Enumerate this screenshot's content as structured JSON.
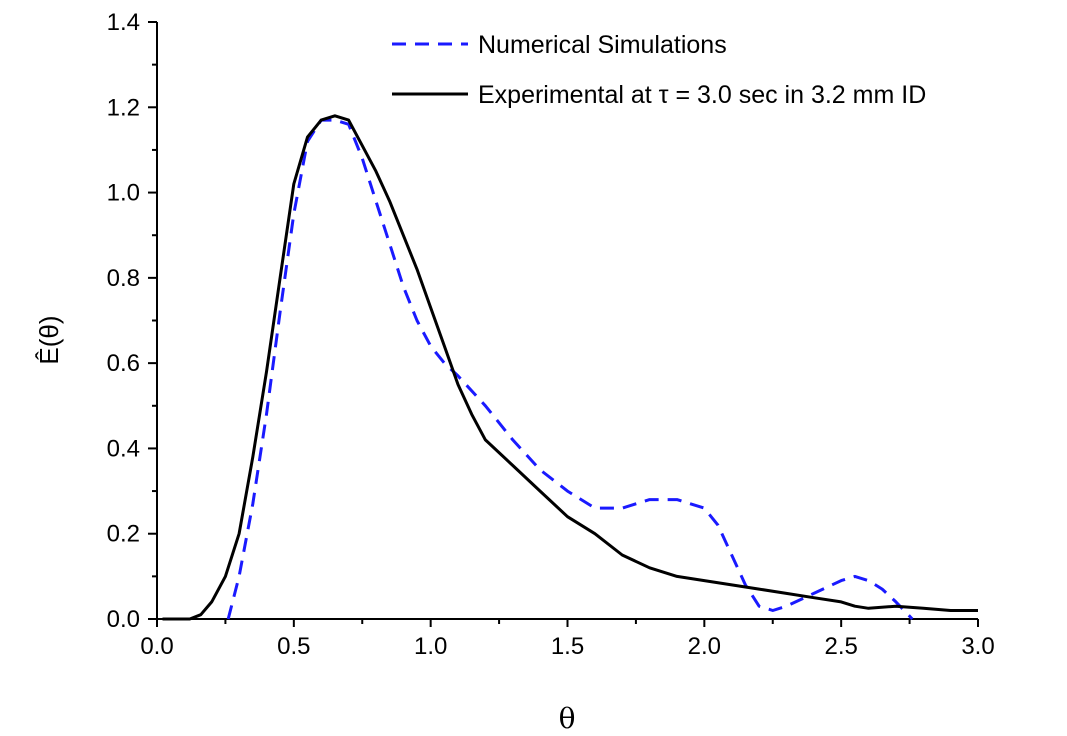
{
  "chart_data": {
    "type": "line",
    "xlabel": "θ",
    "ylabel": "Ê(θ)",
    "xlim": [
      0.0,
      3.0
    ],
    "ylim": [
      0.0,
      1.4
    ],
    "xticks": [
      "0.0",
      "0.5",
      "1.0",
      "1.5",
      "2.0",
      "2.5",
      "3.0"
    ],
    "yticks": [
      "0.0",
      "0.2",
      "0.4",
      "0.6",
      "0.8",
      "1.0",
      "1.2",
      "1.4"
    ],
    "legend_position": "top-right",
    "grid": false,
    "series": [
      {
        "name": "Numerical Simulations",
        "style": "dashed",
        "color": "#1a1aff",
        "x": [
          0.26,
          0.3,
          0.35,
          0.4,
          0.45,
          0.5,
          0.55,
          0.6,
          0.65,
          0.7,
          0.75,
          0.8,
          0.85,
          0.9,
          0.95,
          1.0,
          1.05,
          1.1,
          1.2,
          1.3,
          1.4,
          1.5,
          1.6,
          1.7,
          1.8,
          1.9,
          2.0,
          2.05,
          2.1,
          2.15,
          2.2,
          2.25,
          2.3,
          2.4,
          2.5,
          2.55,
          2.6,
          2.65,
          2.7,
          2.76
        ],
        "y": [
          0.0,
          0.1,
          0.27,
          0.48,
          0.72,
          0.95,
          1.12,
          1.17,
          1.17,
          1.16,
          1.08,
          0.98,
          0.88,
          0.78,
          0.7,
          0.64,
          0.6,
          0.57,
          0.5,
          0.42,
          0.35,
          0.3,
          0.26,
          0.26,
          0.28,
          0.28,
          0.26,
          0.22,
          0.15,
          0.08,
          0.03,
          0.02,
          0.03,
          0.06,
          0.09,
          0.1,
          0.09,
          0.07,
          0.04,
          0.0
        ]
      },
      {
        "name": "Experimental at τ = 3.0 sec in 3.2 mm ID",
        "style": "solid",
        "color": "#000000",
        "x": [
          0.02,
          0.08,
          0.12,
          0.16,
          0.2,
          0.25,
          0.3,
          0.35,
          0.4,
          0.45,
          0.5,
          0.55,
          0.6,
          0.65,
          0.7,
          0.75,
          0.8,
          0.85,
          0.9,
          0.95,
          1.0,
          1.05,
          1.1,
          1.15,
          1.2,
          1.3,
          1.4,
          1.5,
          1.6,
          1.7,
          1.8,
          1.9,
          2.0,
          2.1,
          2.2,
          2.3,
          2.4,
          2.5,
          2.55,
          2.6,
          2.7,
          2.8,
          2.9,
          3.0
        ],
        "y": [
          0.0,
          0.0,
          0.0,
          0.01,
          0.04,
          0.1,
          0.2,
          0.38,
          0.58,
          0.8,
          1.02,
          1.13,
          1.17,
          1.18,
          1.17,
          1.11,
          1.05,
          0.98,
          0.9,
          0.82,
          0.73,
          0.64,
          0.55,
          0.48,
          0.42,
          0.36,
          0.3,
          0.24,
          0.2,
          0.15,
          0.12,
          0.1,
          0.09,
          0.08,
          0.07,
          0.06,
          0.05,
          0.04,
          0.03,
          0.025,
          0.03,
          0.025,
          0.02,
          0.02
        ]
      }
    ]
  }
}
